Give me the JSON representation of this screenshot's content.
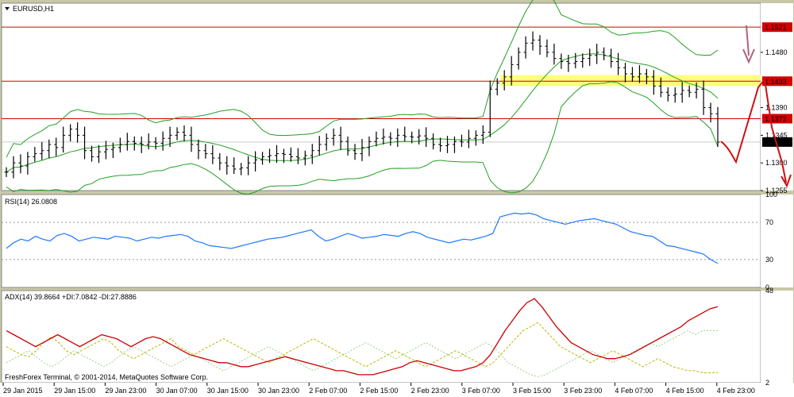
{
  "chart_data": [
    {
      "type": "line",
      "panel": "price",
      "title": "EURUSD,H1",
      "ylim": [
        1.1255,
        1.156
      ],
      "yticks": [
        "1.1521",
        "1.1480",
        "1.1433",
        "1.1390",
        "1.1372",
        "1.1345",
        "1.1334",
        "1.1300",
        "1.1255"
      ],
      "levels": [
        {
          "value": 1.1521,
          "label": "1.1521",
          "color": "#d40000"
        },
        {
          "value": 1.1433,
          "label": "1.1433",
          "color": "#d40000"
        },
        {
          "value": 1.1372,
          "label": "1.1372",
          "color": "#d40000"
        }
      ],
      "current": {
        "value": 1.1334,
        "label": "1.1334"
      },
      "bollinger": {
        "color": "#22a022"
      },
      "close": [
        1.1285,
        1.13,
        1.1295,
        1.131,
        1.1315,
        1.132,
        1.133,
        1.1325,
        1.1345,
        1.1355,
        1.1345,
        1.132,
        1.131,
        1.1318,
        1.1322,
        1.1325,
        1.133,
        1.1335,
        1.1332,
        1.133,
        1.1334,
        1.1332,
        1.134,
        1.1345,
        1.135,
        1.1345,
        1.133,
        1.132,
        1.1315,
        1.1308,
        1.13,
        1.1295,
        1.129,
        1.1292,
        1.13,
        1.1305,
        1.131,
        1.1312,
        1.1315,
        1.1314,
        1.131,
        1.1308,
        1.1312,
        1.132,
        1.133,
        1.134,
        1.1345,
        1.1335,
        1.132,
        1.1315,
        1.1325,
        1.1335,
        1.134,
        1.1342,
        1.134,
        1.1345,
        1.1343,
        1.1342,
        1.1344,
        1.134,
        1.133,
        1.1328,
        1.133,
        1.1335,
        1.1334,
        1.134,
        1.1345,
        1.135,
        1.142,
        1.143,
        1.144,
        1.146,
        1.148,
        1.1495,
        1.15,
        1.149,
        1.148,
        1.147,
        1.1465,
        1.1462,
        1.1465,
        1.147,
        1.1475,
        1.148,
        1.1475,
        1.1465,
        1.1455,
        1.1445,
        1.144,
        1.1445,
        1.144,
        1.1425,
        1.1415,
        1.141,
        1.1412,
        1.1418,
        1.1415,
        1.142,
        1.139,
        1.138,
        1.1334
      ],
      "overlay_levels_label": [
        "1.1433",
        "1.1372"
      ]
    },
    {
      "type": "line",
      "panel": "rsi",
      "title": "RSI(14) 26.0808",
      "ylim": [
        0,
        100
      ],
      "yticks": [
        "100",
        "70",
        "30",
        "0"
      ],
      "series": [
        {
          "color": "#1e78ff",
          "values": [
            42,
            48,
            52,
            50,
            55,
            52,
            50,
            56,
            58,
            55,
            50,
            52,
            54,
            53,
            52,
            55,
            54,
            53,
            50,
            52,
            54,
            53,
            55,
            56,
            57,
            55,
            50,
            48,
            45,
            44,
            43,
            42,
            44,
            46,
            48,
            50,
            52,
            53,
            54,
            56,
            58,
            60,
            62,
            55,
            50,
            52,
            55,
            58,
            56,
            53,
            54,
            55,
            57,
            56,
            55,
            58,
            60,
            58,
            54,
            52,
            50,
            48,
            50,
            52,
            51,
            53,
            55,
            58,
            76,
            78,
            80,
            79,
            80,
            78,
            74,
            72,
            70,
            68,
            70,
            72,
            73,
            74,
            72,
            70,
            68,
            64,
            60,
            58,
            56,
            55,
            50,
            45,
            44,
            42,
            40,
            38,
            36,
            30,
            26
          ]
        }
      ]
    },
    {
      "type": "line",
      "panel": "adx",
      "title": "ADX(14) 39.8664 +DI:7.0842 -DI:27.8886",
      "ylim": [
        2,
        48
      ],
      "yticks": [
        "48",
        "2"
      ],
      "series": [
        {
          "color": "#cc0000",
          "values": [
            28,
            26,
            24,
            22,
            20,
            22,
            24,
            26,
            24,
            22,
            20,
            22,
            24,
            26,
            25,
            24,
            22,
            20,
            22,
            24,
            25,
            24,
            22,
            20,
            18,
            16,
            15,
            14,
            13,
            12,
            12,
            11,
            10,
            10,
            11,
            12,
            13,
            14,
            15,
            14,
            13,
            12,
            11,
            10,
            9,
            8,
            8,
            7,
            6,
            6,
            6,
            7,
            8,
            9,
            10,
            12,
            13,
            12,
            11,
            10,
            9,
            8,
            8,
            9,
            10,
            12,
            16,
            22,
            28,
            33,
            38,
            42,
            44,
            40,
            35,
            30,
            26,
            22,
            20,
            18,
            16,
            15,
            14,
            14,
            15,
            16,
            18,
            20,
            22,
            24,
            26,
            28,
            30,
            33,
            35,
            37,
            39,
            40
          ]
        },
        {
          "color": "#b8b800",
          "values": [
            20,
            18,
            16,
            15,
            18,
            22,
            25,
            22,
            18,
            16,
            18,
            20,
            22,
            24,
            22,
            18,
            16,
            14,
            16,
            18,
            20,
            22,
            24,
            20,
            18,
            16,
            18,
            20,
            22,
            24,
            22,
            20,
            18,
            16,
            14,
            12,
            14,
            16,
            18,
            20,
            22,
            24,
            22,
            20,
            18,
            16,
            14,
            12,
            10,
            12,
            14,
            16,
            18,
            16,
            14,
            12,
            10,
            12,
            14,
            16,
            18,
            16,
            14,
            12,
            10,
            12,
            16,
            20,
            24,
            28,
            30,
            32,
            28,
            24,
            20,
            18,
            16,
            14,
            12,
            14,
            16,
            18,
            16,
            14,
            12,
            10,
            12,
            14,
            12,
            10,
            9,
            8,
            8,
            7,
            7,
            7
          ]
        },
        {
          "color": "#9bd08a",
          "values": [
            12,
            14,
            16,
            18,
            15,
            12,
            10,
            12,
            15,
            18,
            16,
            14,
            12,
            10,
            12,
            15,
            18,
            20,
            18,
            16,
            14,
            12,
            10,
            12,
            14,
            16,
            14,
            12,
            10,
            8,
            10,
            12,
            14,
            16,
            18,
            20,
            18,
            16,
            14,
            12,
            10,
            8,
            10,
            12,
            14,
            16,
            18,
            20,
            22,
            20,
            18,
            16,
            14,
            16,
            18,
            20,
            22,
            20,
            18,
            16,
            14,
            16,
            18,
            20,
            22,
            20,
            16,
            12,
            10,
            8,
            6,
            5,
            6,
            8,
            10,
            12,
            14,
            16,
            18,
            16,
            14,
            12,
            14,
            16,
            18,
            20,
            22,
            20,
            22,
            24,
            26,
            28,
            26,
            28,
            28,
            28
          ]
        }
      ]
    }
  ],
  "x_axis_labels": [
    "29 Jan 2015",
    "29 Jan 15:00",
    "29 Jan 23:00",
    "30 Jan 07:00",
    "30 Jan 15:00",
    "30 Jan 23:00",
    "2 Feb 07:00",
    "2 Feb 15:00",
    "2 Feb 23:00",
    "3 Feb 07:00",
    "3 Feb 15:00",
    "3 Feb 23:00",
    "4 Feb 07:00",
    "4 Feb 15:00",
    "4 Feb 23:00"
  ],
  "footer": "FreshForex Terminal, © 2001-2014, MetaQuotes Software Corp.",
  "colors": {
    "bg": "#ffffff",
    "frame": "#c8c8a8",
    "zone": "#ffff66",
    "arrow": "#cc1111",
    "down_arrow": "#b06080"
  }
}
